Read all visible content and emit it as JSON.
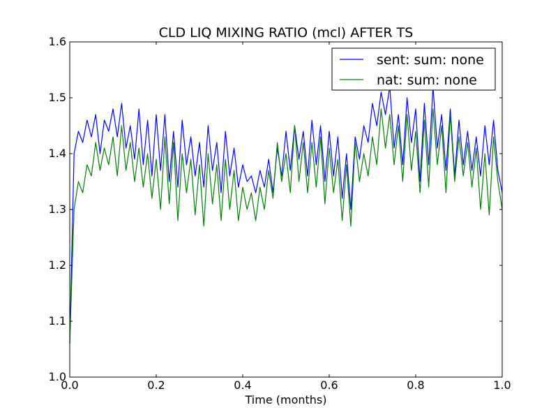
{
  "chart_data": {
    "type": "line",
    "title": "CLD LIQ MIXING RATIO (mcl) AFTER TS",
    "xlabel": "Time (months)",
    "ylabel": "",
    "xlim": [
      0.0,
      1.0
    ],
    "ylim": [
      1.0,
      1.6
    ],
    "x_ticks": [
      "0.0",
      "0.2",
      "0.4",
      "0.6",
      "0.8",
      "1.0"
    ],
    "y_ticks": [
      "1.0",
      "1.1",
      "1.2",
      "1.3",
      "1.4",
      "1.5",
      "1.6"
    ],
    "grid": false,
    "legend_position": "upper right",
    "x": [
      0.0,
      0.01,
      0.02,
      0.03,
      0.04,
      0.05,
      0.06,
      0.07,
      0.08,
      0.09,
      0.1,
      0.11,
      0.12,
      0.13,
      0.14,
      0.15,
      0.16,
      0.17,
      0.18,
      0.19,
      0.2,
      0.21,
      0.22,
      0.23,
      0.24,
      0.25,
      0.26,
      0.27,
      0.28,
      0.29,
      0.3,
      0.31,
      0.32,
      0.33,
      0.34,
      0.35,
      0.36,
      0.37,
      0.38,
      0.39,
      0.4,
      0.41,
      0.42,
      0.43,
      0.44,
      0.45,
      0.46,
      0.47,
      0.48,
      0.49,
      0.5,
      0.51,
      0.52,
      0.53,
      0.54,
      0.55,
      0.56,
      0.57,
      0.58,
      0.59,
      0.6,
      0.61,
      0.62,
      0.63,
      0.64,
      0.65,
      0.66,
      0.67,
      0.68,
      0.69,
      0.7,
      0.71,
      0.72,
      0.73,
      0.74,
      0.75,
      0.76,
      0.77,
      0.78,
      0.79,
      0.8,
      0.81,
      0.82,
      0.83,
      0.84,
      0.85,
      0.86,
      0.87,
      0.88,
      0.89,
      0.9,
      0.91,
      0.92,
      0.93,
      0.94,
      0.95,
      0.96,
      0.97,
      0.98,
      0.99,
      1.0
    ],
    "series": [
      {
        "name": "sent: sum: none",
        "color": "#0000ff",
        "values": [
          1.06,
          1.4,
          1.44,
          1.42,
          1.46,
          1.43,
          1.47,
          1.4,
          1.46,
          1.44,
          1.48,
          1.43,
          1.49,
          1.41,
          1.45,
          1.39,
          1.48,
          1.38,
          1.46,
          1.36,
          1.47,
          1.37,
          1.47,
          1.35,
          1.44,
          1.34,
          1.46,
          1.38,
          1.43,
          1.36,
          1.42,
          1.34,
          1.45,
          1.37,
          1.42,
          1.33,
          1.44,
          1.36,
          1.41,
          1.34,
          1.38,
          1.35,
          1.36,
          1.33,
          1.37,
          1.34,
          1.39,
          1.33,
          1.41,
          1.36,
          1.44,
          1.37,
          1.45,
          1.39,
          1.44,
          1.36,
          1.46,
          1.38,
          1.45,
          1.35,
          1.44,
          1.36,
          1.43,
          1.32,
          1.4,
          1.3,
          1.43,
          1.39,
          1.45,
          1.42,
          1.49,
          1.45,
          1.51,
          1.47,
          1.52,
          1.41,
          1.47,
          1.38,
          1.5,
          1.42,
          1.48,
          1.35,
          1.49,
          1.38,
          1.52,
          1.41,
          1.47,
          1.37,
          1.48,
          1.36,
          1.46,
          1.38,
          1.44,
          1.37,
          1.43,
          1.36,
          1.45,
          1.38,
          1.46,
          1.37,
          1.33
        ]
      },
      {
        "name": "nat: sum: none",
        "color": "#008000",
        "values": [
          1.06,
          1.3,
          1.35,
          1.33,
          1.38,
          1.36,
          1.42,
          1.37,
          1.41,
          1.38,
          1.43,
          1.36,
          1.45,
          1.37,
          1.42,
          1.35,
          1.41,
          1.34,
          1.4,
          1.32,
          1.39,
          1.3,
          1.43,
          1.31,
          1.42,
          1.28,
          1.4,
          1.33,
          1.39,
          1.29,
          1.38,
          1.27,
          1.4,
          1.31,
          1.38,
          1.28,
          1.39,
          1.3,
          1.37,
          1.28,
          1.34,
          1.3,
          1.33,
          1.28,
          1.34,
          1.3,
          1.37,
          1.32,
          1.42,
          1.35,
          1.4,
          1.33,
          1.45,
          1.35,
          1.42,
          1.33,
          1.42,
          1.34,
          1.43,
          1.31,
          1.41,
          1.33,
          1.39,
          1.28,
          1.38,
          1.27,
          1.42,
          1.35,
          1.4,
          1.36,
          1.43,
          1.38,
          1.48,
          1.41,
          1.47,
          1.38,
          1.45,
          1.35,
          1.47,
          1.37,
          1.44,
          1.33,
          1.46,
          1.34,
          1.48,
          1.38,
          1.45,
          1.33,
          1.47,
          1.35,
          1.43,
          1.36,
          1.42,
          1.34,
          1.41,
          1.3,
          1.4,
          1.29,
          1.43,
          1.35,
          1.3
        ]
      }
    ]
  }
}
